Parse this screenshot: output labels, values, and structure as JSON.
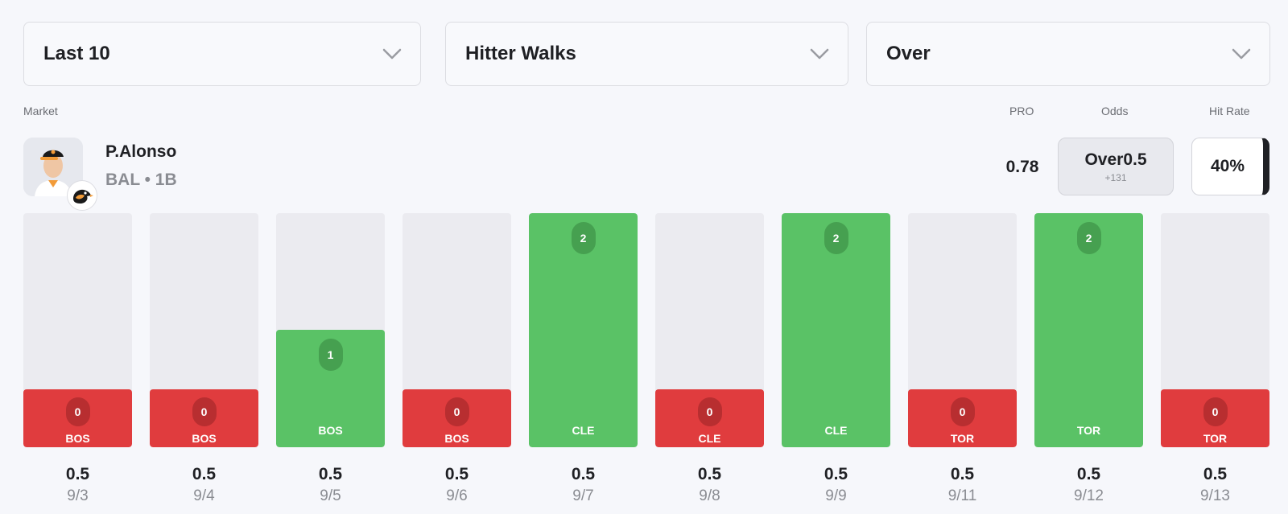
{
  "filters": {
    "range": "Last 10",
    "market": "Hitter Walks",
    "side": "Over"
  },
  "headers": {
    "market": "Market",
    "pro": "PRO",
    "odds": "Odds",
    "hit_rate": "Hit Rate"
  },
  "player": {
    "name": "P.Alonso",
    "meta": "BAL • 1B"
  },
  "pro_value": "0.78",
  "odds": {
    "main": "Over0.5",
    "sub": "+131"
  },
  "hit_rate": "40%",
  "colors": {
    "hit": "#5ac266",
    "miss": "#e03c3e",
    "track": "#ebebf0"
  },
  "games": [
    {
      "value": "0",
      "opponent": "BOS",
      "line": "0.5",
      "date": "9/3",
      "result": "miss"
    },
    {
      "value": "0",
      "opponent": "BOS",
      "line": "0.5",
      "date": "9/4",
      "result": "miss"
    },
    {
      "value": "1",
      "opponent": "BOS",
      "line": "0.5",
      "date": "9/5",
      "result": "hit"
    },
    {
      "value": "0",
      "opponent": "BOS",
      "line": "0.5",
      "date": "9/6",
      "result": "miss"
    },
    {
      "value": "2",
      "opponent": "CLE",
      "line": "0.5",
      "date": "9/7",
      "result": "hit"
    },
    {
      "value": "0",
      "opponent": "CLE",
      "line": "0.5",
      "date": "9/8",
      "result": "miss"
    },
    {
      "value": "2",
      "opponent": "CLE",
      "line": "0.5",
      "date": "9/9",
      "result": "hit"
    },
    {
      "value": "0",
      "opponent": "TOR",
      "line": "0.5",
      "date": "9/11",
      "result": "miss"
    },
    {
      "value": "2",
      "opponent": "TOR",
      "line": "0.5",
      "date": "9/12",
      "result": "hit"
    },
    {
      "value": "0",
      "opponent": "TOR",
      "line": "0.5",
      "date": "9/13",
      "result": "miss"
    }
  ]
}
